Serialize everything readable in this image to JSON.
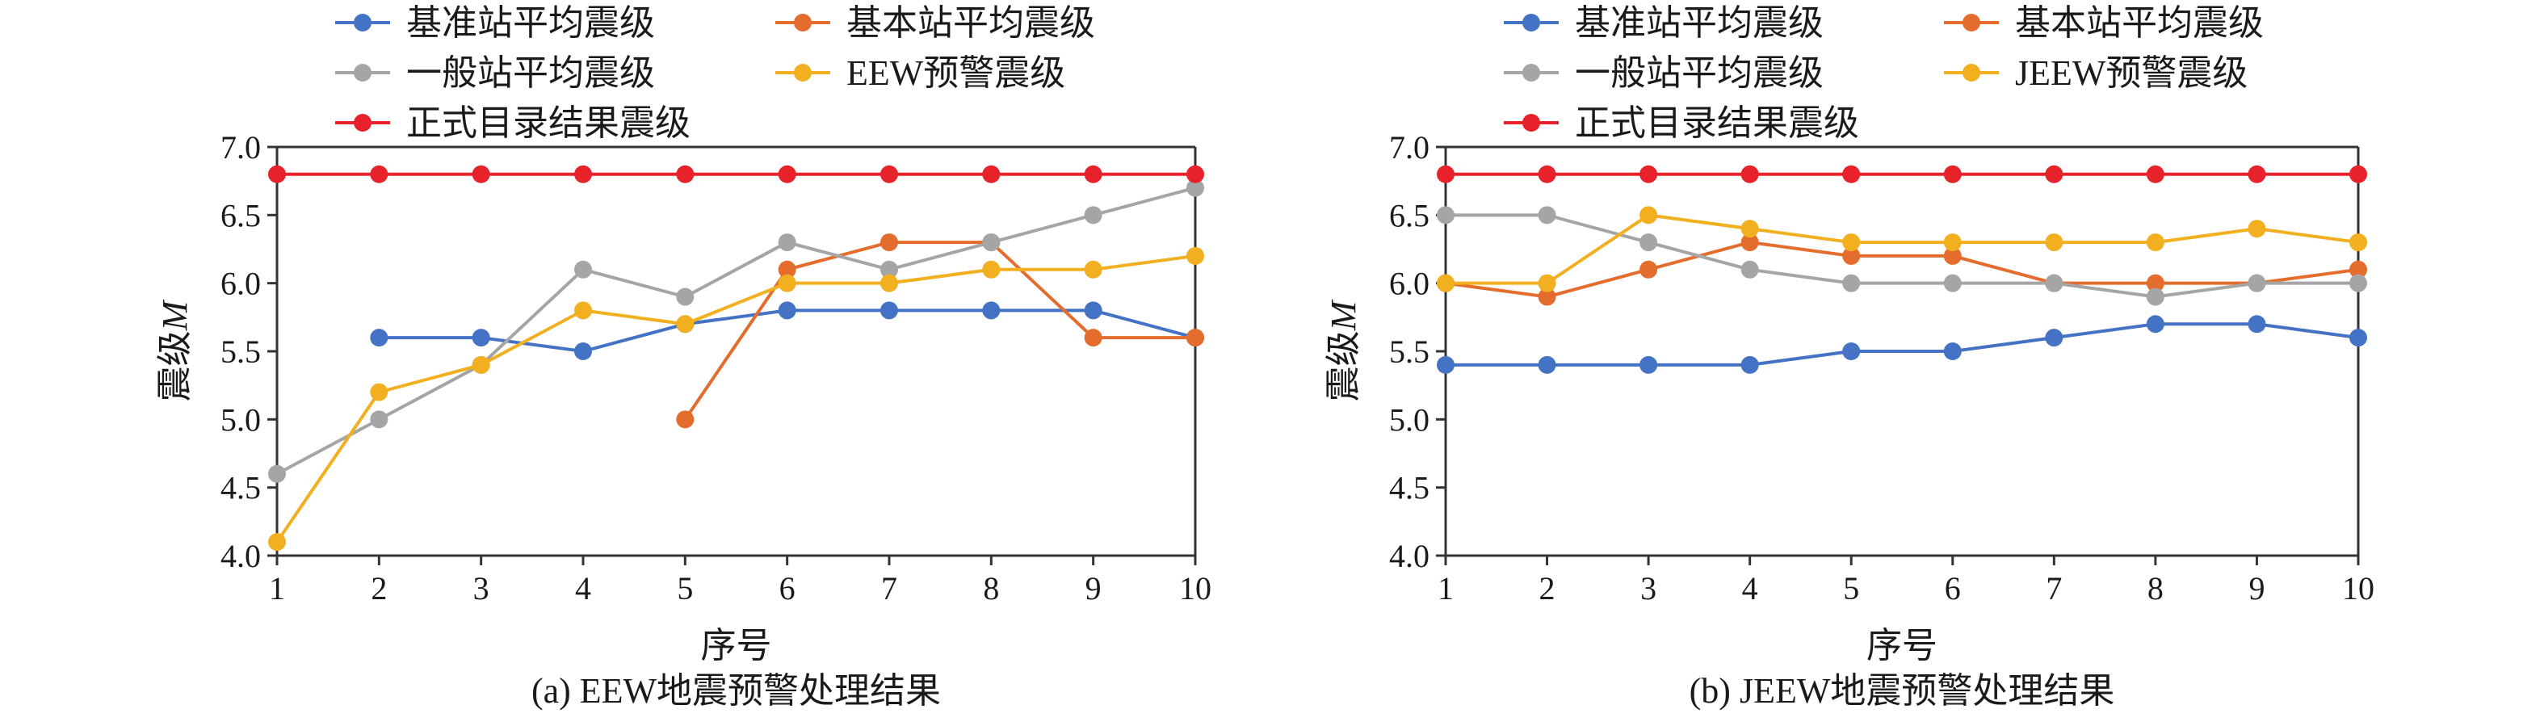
{
  "chart_data": [
    {
      "type": "line",
      "caption": "(a) EEW地震预警处理结果",
      "xlabel": "序号",
      "ylabel": "震级",
      "ylabel_italic": "M",
      "x": [
        1,
        2,
        3,
        4,
        5,
        6,
        7,
        8,
        9,
        10
      ],
      "xlim": [
        1,
        10
      ],
      "ylim": [
        4.0,
        7.0
      ],
      "yticks": [
        "4.0",
        "4.5",
        "5.0",
        "5.5",
        "6.0",
        "6.5",
        "7.0"
      ],
      "grid": false,
      "legend": "top",
      "series": [
        {
          "name": "基准站平均震级",
          "color": "#4472c4",
          "values": [
            null,
            5.6,
            5.6,
            5.5,
            5.7,
            5.8,
            5.8,
            5.8,
            5.8,
            5.6
          ]
        },
        {
          "name": "基本站平均震级",
          "color": "#e46c2c",
          "values": [
            null,
            null,
            null,
            null,
            5.0,
            6.1,
            6.3,
            6.3,
            5.6,
            5.6
          ]
        },
        {
          "name": "一般站平均震级",
          "color": "#a5a5a5",
          "values": [
            4.6,
            5.0,
            5.4,
            6.1,
            5.9,
            6.3,
            6.1,
            6.3,
            6.5,
            6.7
          ]
        },
        {
          "name": "EEW预警震级",
          "color": "#f2b021",
          "values": [
            4.1,
            5.2,
            5.4,
            5.8,
            5.7,
            6.0,
            6.0,
            6.1,
            6.1,
            6.2
          ]
        },
        {
          "name": "正式目录结果震级",
          "color": "#e8222a",
          "values": [
            6.8,
            6.8,
            6.8,
            6.8,
            6.8,
            6.8,
            6.8,
            6.8,
            6.8,
            6.8
          ]
        }
      ]
    },
    {
      "type": "line",
      "caption": "(b) JEEW地震预警处理结果",
      "xlabel": "序号",
      "ylabel": "震级",
      "ylabel_italic": "M",
      "x": [
        1,
        2,
        3,
        4,
        5,
        6,
        7,
        8,
        9,
        10
      ],
      "xlim": [
        1,
        10
      ],
      "ylim": [
        4.0,
        7.0
      ],
      "yticks": [
        "4.0",
        "4.5",
        "5.0",
        "5.5",
        "6.0",
        "6.5",
        "7.0"
      ],
      "grid": false,
      "legend": "top",
      "series": [
        {
          "name": "基准站平均震级",
          "color": "#4472c4",
          "values": [
            5.4,
            5.4,
            5.4,
            5.4,
            5.5,
            5.5,
            5.6,
            5.7,
            5.7,
            5.6
          ]
        },
        {
          "name": "基本站平均震级",
          "color": "#e46c2c",
          "values": [
            6.0,
            5.9,
            6.1,
            6.3,
            6.2,
            6.2,
            6.0,
            6.0,
            6.0,
            6.1
          ]
        },
        {
          "name": "一般站平均震级",
          "color": "#a5a5a5",
          "values": [
            6.5,
            6.5,
            6.3,
            6.1,
            6.0,
            6.0,
            6.0,
            5.9,
            6.0,
            6.0
          ]
        },
        {
          "name": "JEEW预警震级",
          "color": "#f2b021",
          "values": [
            6.0,
            6.0,
            6.5,
            6.4,
            6.3,
            6.3,
            6.3,
            6.3,
            6.4,
            6.3
          ]
        },
        {
          "name": "正式目录结果震级",
          "color": "#e8222a",
          "values": [
            6.8,
            6.8,
            6.8,
            6.8,
            6.8,
            6.8,
            6.8,
            6.8,
            6.8,
            6.8
          ]
        }
      ]
    }
  ]
}
